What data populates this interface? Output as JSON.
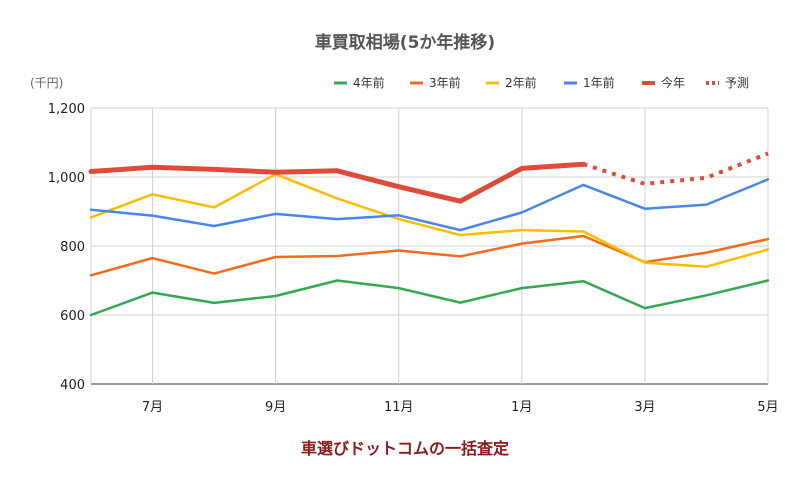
{
  "chart_data": {
    "type": "line",
    "title": "車買取相場(5か年推移)",
    "ylabel": "(千円)",
    "credit": "車選びドットコムの一括査定",
    "ylim": [
      400,
      1200
    ],
    "yticks": [
      400,
      600,
      800,
      1000,
      1200
    ],
    "ytick_labels": [
      "400",
      "600",
      "800",
      "1,000",
      "1,200"
    ],
    "x": [
      "6月",
      "7月",
      "8月",
      "9月",
      "10月",
      "11月",
      "12月",
      "1月",
      "2月",
      "3月",
      "4月",
      "5月"
    ],
    "xtick_labels": [
      "7月",
      "9月",
      "11月",
      "1月",
      "3月",
      "5月"
    ],
    "grid": true,
    "legend_position": "top-right",
    "series": [
      {
        "name": "4年前",
        "color": "#34a853",
        "style": "solid",
        "width": 2.5,
        "values": [
          600,
          665,
          635,
          655,
          700,
          678,
          636,
          678,
          698,
          620,
          657,
          700
        ]
      },
      {
        "name": "3年前",
        "color": "#f26a1b",
        "style": "solid",
        "width": 2.5,
        "values": [
          715,
          765,
          720,
          768,
          771,
          787,
          770,
          807,
          829,
          753,
          781,
          820
        ]
      },
      {
        "name": "2年前",
        "color": "#fbbc04",
        "style": "solid",
        "width": 2.5,
        "values": [
          883,
          950,
          912,
          1008,
          938,
          878,
          832,
          846,
          842,
          752,
          740,
          790
        ]
      },
      {
        "name": "1年前",
        "color": "#4a86e8",
        "style": "solid",
        "width": 2.5,
        "values": [
          905,
          888,
          858,
          893,
          878,
          889,
          846,
          897,
          977,
          908,
          920,
          993
        ]
      },
      {
        "name": "今年",
        "color": "#de4b3b",
        "style": "solid",
        "width": 5,
        "values": [
          1016,
          1028,
          1022,
          1014,
          1018,
          972,
          930,
          1025,
          1037,
          null,
          null,
          null
        ]
      },
      {
        "name": "予測",
        "color": "#de4b3b",
        "style": "dotted",
        "width": 4,
        "values": [
          null,
          null,
          null,
          null,
          null,
          null,
          null,
          null,
          1037,
          980,
          998,
          1068
        ]
      }
    ]
  }
}
